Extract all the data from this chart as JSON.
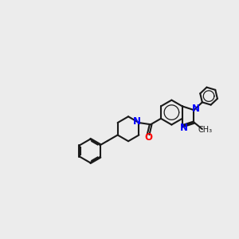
{
  "background_color": "#ececec",
  "bond_color": "#1a1a1a",
  "n_color": "#0000ff",
  "o_color": "#ff0000",
  "lw": 1.5,
  "lw_aromatic": 0.9,
  "fs": 8.5,
  "xlim": [
    0,
    10
  ],
  "ylim": [
    0,
    10
  ]
}
